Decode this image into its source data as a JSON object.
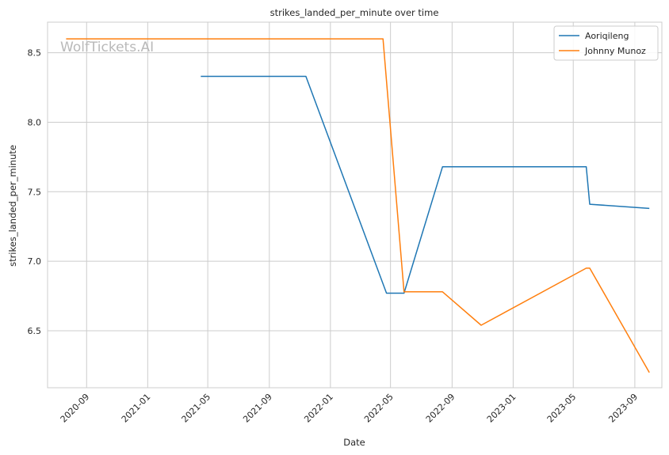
{
  "chart_data": {
    "type": "line",
    "title": "strikes_landed_per_minute over time",
    "xlabel": "Date",
    "ylabel": "strikes_landed_per_minute",
    "watermark": "WolfTickets.AI",
    "x_range": [
      "2020-06-15",
      "2023-10-25"
    ],
    "ylim": [
      6.09,
      8.72
    ],
    "x_ticks": [
      "2020-09",
      "2021-01",
      "2021-05",
      "2021-09",
      "2022-01",
      "2022-05",
      "2022-09",
      "2023-01",
      "2023-05",
      "2023-09"
    ],
    "y_ticks": [
      "6.5",
      "7.0",
      "7.5",
      "8.0",
      "8.5"
    ],
    "grid": true,
    "legend_position": "top-right",
    "series": [
      {
        "name": "Aoriqileng",
        "color": "#1f77b4",
        "points": [
          [
            "2021-04-17",
            8.33
          ],
          [
            "2021-11-13",
            8.33
          ],
          [
            "2022-04-23",
            6.77
          ],
          [
            "2022-05-28",
            6.77
          ],
          [
            "2022-08-13",
            7.68
          ],
          [
            "2023-05-27",
            7.68
          ],
          [
            "2023-06-03",
            7.41
          ],
          [
            "2023-09-30",
            7.38
          ]
        ]
      },
      {
        "name": "Johnny Munoz",
        "color": "#ff7f0e",
        "points": [
          [
            "2020-07-22",
            8.6
          ],
          [
            "2022-04-16",
            8.6
          ],
          [
            "2022-05-28",
            6.78
          ],
          [
            "2022-08-13",
            6.78
          ],
          [
            "2022-10-29",
            6.54
          ],
          [
            "2023-05-27",
            6.95
          ],
          [
            "2023-06-03",
            6.95
          ],
          [
            "2023-09-30",
            6.2
          ]
        ]
      }
    ]
  }
}
